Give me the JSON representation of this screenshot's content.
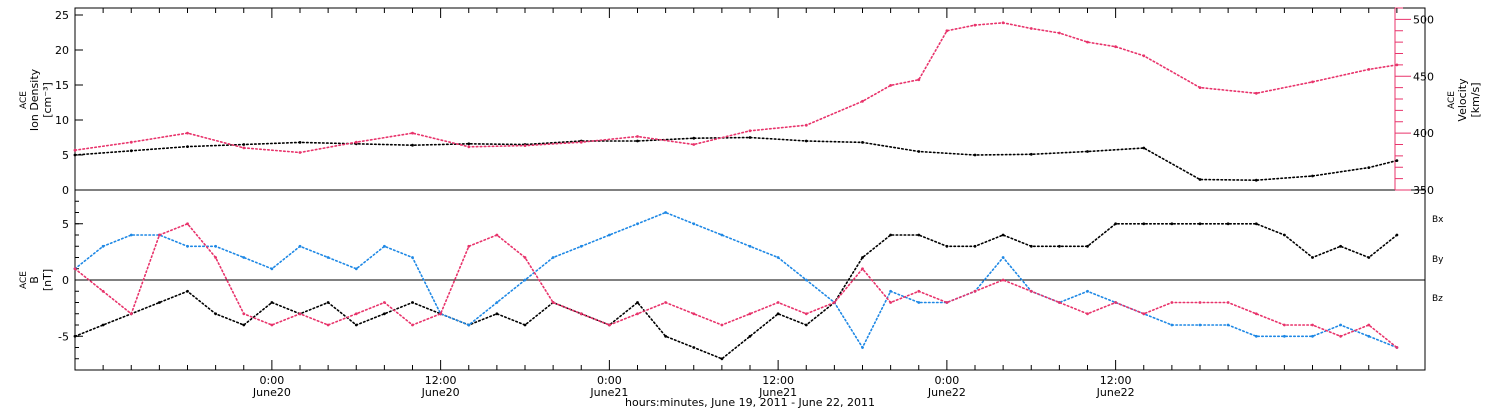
{
  "chart_data": [
    {
      "type": "scatter",
      "title": "",
      "ylabel": [
        "ACE",
        "Ion Density",
        "[cm⁻³]"
      ],
      "ylabel_right": [
        "ACE",
        "Velocity",
        "[km/s]"
      ],
      "ylim": [
        0,
        26
      ],
      "ylim_right": [
        350,
        510
      ],
      "yticks": [
        "0",
        "5",
        "10",
        "15",
        "20",
        "25"
      ],
      "yticks_right": [
        "350",
        "400",
        "450",
        "500"
      ],
      "series": [
        {
          "name": "Ion Density",
          "color": "#000000",
          "x": [
            0,
            4,
            8,
            12,
            16,
            20,
            24,
            28,
            32,
            36,
            40,
            44,
            48,
            52,
            56,
            60,
            64,
            68,
            72,
            76,
            80,
            84,
            88,
            92,
            94
          ],
          "y": [
            5.0,
            5.6,
            6.2,
            6.5,
            6.8,
            6.6,
            6.4,
            6.6,
            6.5,
            7.0,
            7.0,
            7.4,
            7.5,
            7.0,
            6.8,
            5.5,
            5.0,
            5.1,
            5.5,
            6.0,
            1.5,
            1.4,
            2.0,
            3.2,
            4.2
          ]
        },
        {
          "name": "Velocity",
          "color": "#e8336b",
          "axis": "right",
          "x": [
            0,
            4,
            8,
            12,
            16,
            20,
            24,
            28,
            32,
            36,
            40,
            44,
            48,
            52,
            56,
            58,
            60,
            62,
            64,
            66,
            68,
            70,
            72,
            74,
            76,
            80,
            84,
            88,
            92,
            94
          ],
          "y": [
            385,
            392,
            400,
            387,
            383,
            392,
            400,
            388,
            389,
            392,
            397,
            390,
            402,
            407,
            428,
            442,
            447,
            490,
            495,
            497,
            492,
            488,
            480,
            476,
            468,
            440,
            435,
            445,
            456,
            460
          ]
        }
      ]
    },
    {
      "type": "scatter",
      "title": "",
      "ylabel": [
        "ACE",
        "B",
        "[nT]"
      ],
      "ylim": [
        -8,
        8
      ],
      "yticks": [
        "-5",
        "0",
        "5"
      ],
      "legend": [
        "Bx",
        "By",
        "Bz"
      ],
      "x_ticks": [
        {
          "time": "0:00",
          "date": "June20",
          "x": 14
        },
        {
          "time": "12:00",
          "date": "June20",
          "x": 26
        },
        {
          "time": "0:00",
          "date": "June21",
          "x": 38
        },
        {
          "time": "12:00",
          "date": "June21",
          "x": 50
        },
        {
          "time": "0:00",
          "date": "June22",
          "x": 62
        },
        {
          "time": "12:00",
          "date": "June22",
          "x": 74
        }
      ],
      "xlim": [
        0,
        96
      ],
      "xlabel": "hours:minutes, June 19, 2011 - June 22, 2011",
      "series": [
        {
          "name": "Bx",
          "color": "#000000",
          "x": [
            0,
            2,
            4,
            6,
            8,
            10,
            12,
            14,
            16,
            18,
            20,
            22,
            24,
            26,
            28,
            30,
            32,
            34,
            36,
            38,
            40,
            42,
            44,
            46,
            48,
            50,
            52,
            54,
            56,
            58,
            60,
            62,
            64,
            66,
            68,
            70,
            72,
            74,
            76,
            78,
            80,
            82,
            84,
            86,
            88,
            90,
            92,
            94
          ],
          "y": [
            -5,
            -4,
            -3,
            -2,
            -1,
            -3,
            -4,
            -2,
            -3,
            -2,
            -4,
            -3,
            -2,
            -3,
            -4,
            -3,
            -4,
            -2,
            -3,
            -4,
            -2,
            -5,
            -6,
            -7,
            -5,
            -3,
            -4,
            -2,
            2,
            4,
            4,
            3,
            3,
            4,
            3,
            3,
            3,
            5,
            5,
            5,
            5,
            5,
            5,
            4,
            2,
            3,
            2,
            4
          ]
        },
        {
          "name": "By",
          "color": "#1e88e5",
          "x": [
            0,
            2,
            4,
            6,
            8,
            10,
            12,
            14,
            16,
            18,
            20,
            22,
            24,
            26,
            28,
            30,
            32,
            34,
            36,
            38,
            40,
            42,
            44,
            46,
            48,
            50,
            52,
            54,
            56,
            58,
            60,
            62,
            64,
            66,
            68,
            70,
            72,
            74,
            76,
            78,
            80,
            82,
            84,
            86,
            88,
            90,
            92,
            94
          ],
          "y": [
            1,
            3,
            4,
            4,
            3,
            3,
            2,
            1,
            3,
            2,
            1,
            3,
            2,
            -3,
            -4,
            -2,
            0,
            2,
            3,
            4,
            5,
            6,
            5,
            4,
            3,
            2,
            0,
            -2,
            -6,
            -1,
            -2,
            -2,
            -1,
            2,
            -1,
            -2,
            -1,
            -2,
            -3,
            -4,
            -4,
            -4,
            -5,
            -5,
            -5,
            -4,
            -5,
            -6
          ]
        },
        {
          "name": "Bz",
          "color": "#e8336b",
          "x": [
            0,
            2,
            4,
            6,
            8,
            10,
            12,
            14,
            16,
            18,
            20,
            22,
            24,
            26,
            28,
            30,
            32,
            34,
            36,
            38,
            40,
            42,
            44,
            46,
            48,
            50,
            52,
            54,
            56,
            58,
            60,
            62,
            64,
            66,
            68,
            70,
            72,
            74,
            76,
            78,
            80,
            82,
            84,
            86,
            88,
            90,
            92,
            94
          ],
          "y": [
            1,
            -1,
            -3,
            4,
            5,
            2,
            -3,
            -4,
            -3,
            -4,
            -3,
            -2,
            -4,
            -3,
            3,
            4,
            2,
            -2,
            -3,
            -4,
            -3,
            -2,
            -3,
            -4,
            -3,
            -2,
            -3,
            -2,
            1,
            -2,
            -1,
            -2,
            -1,
            0,
            -1,
            -2,
            -3,
            -2,
            -3,
            -2,
            -2,
            -2,
            -3,
            -4,
            -4,
            -5,
            -4,
            -6
          ]
        }
      ]
    }
  ]
}
